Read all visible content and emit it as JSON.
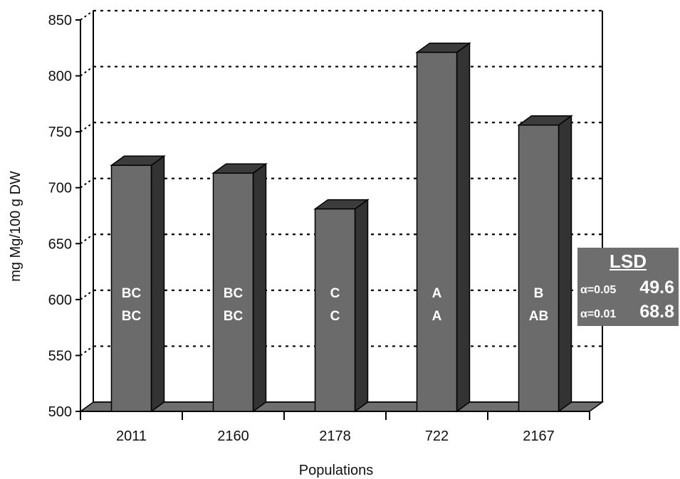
{
  "chart_data": {
    "type": "bar",
    "categories": [
      "2011",
      "2160",
      "2178",
      "722",
      "2167"
    ],
    "values": [
      720,
      713,
      681,
      821,
      756
    ],
    "letters_top": [
      "BC",
      "BC",
      "C",
      "A",
      "B"
    ],
    "letters_bottom": [
      "BC",
      "BC",
      "C",
      "A",
      "AB"
    ],
    "xlabel": "Populations",
    "ylabel": "mg Mg/100 g DW",
    "ylim": [
      500,
      850
    ],
    "yticks": [
      500,
      550,
      600,
      650,
      700,
      750,
      800,
      850
    ],
    "grid": "dotted horizontal",
    "bar_style": "3d",
    "colors": {
      "bar_front": "#6b6b6b",
      "bar_top": "#3c3c3c",
      "bar_side": "#333333",
      "floor": "#6e6e6e"
    }
  },
  "lsd": {
    "title": "LSD",
    "rows": [
      {
        "alpha": "α=0.05",
        "value": "49.6"
      },
      {
        "alpha": "α=0.01",
        "value": "68.8"
      }
    ]
  }
}
